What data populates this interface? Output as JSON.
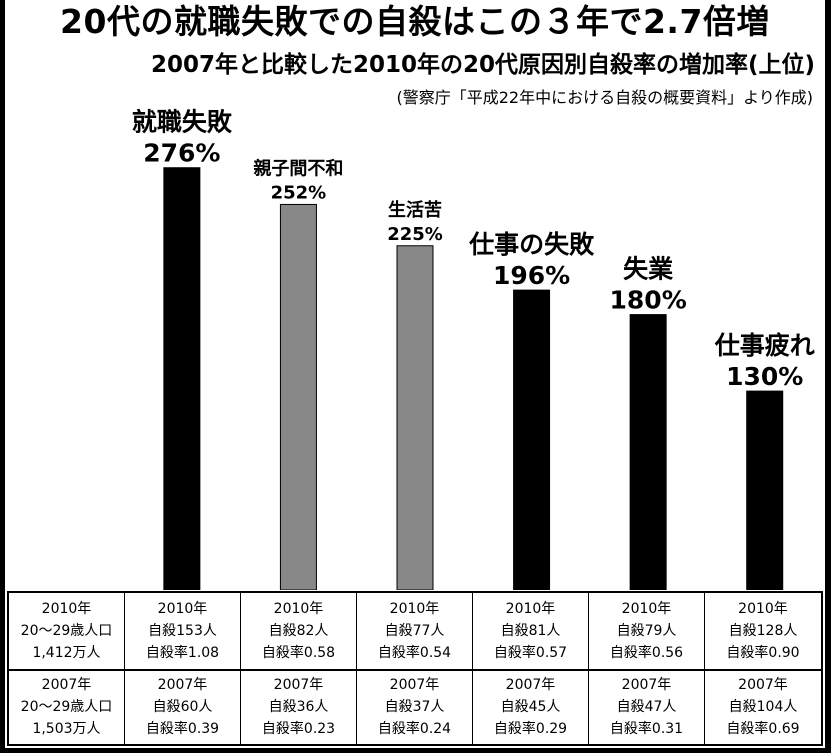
{
  "title": "20代の就職失敗での自殺はこの３年で2.7倍増",
  "subtitle": "2007年と比較した2010年の20代原因別自殺率の増加率(上位)",
  "source": "(警察庁「平成22年中における自殺の概要資料」より作成)",
  "chart_data": {
    "type": "bar",
    "categories": [
      "就職失敗",
      "親子間不和",
      "生活苦",
      "仕事の失敗",
      "失業",
      "仕事疲れ"
    ],
    "values": [
      276,
      252,
      225,
      196,
      180,
      130
    ],
    "value_labels": [
      "276%",
      "252%",
      "225%",
      "196%",
      "180%",
      "130%"
    ],
    "colors": [
      "#000000",
      "#888888",
      "#888888",
      "#000000",
      "#000000",
      "#000000"
    ],
    "ylim": [
      0,
      300
    ],
    "grid": false
  },
  "table": {
    "rows": [
      [
        "2010年\n20～29歳人口\n1,412万人",
        "2010年\n自殺153人\n自殺率1.08",
        "2010年\n自殺82人\n自殺率0.58",
        "2010年\n自殺77人\n自殺率0.54",
        "2010年\n自殺81人\n自殺率0.57",
        "2010年\n自殺79人\n自殺率0.56",
        "2010年\n自殺128人\n自殺率0.90"
      ],
      [
        "2007年\n20～29歳人口\n1,503万人",
        "2007年\n自殺60人\n自殺率0.39",
        "2007年\n自殺36人\n自殺率0.23",
        "2007年\n自殺37人\n自殺率0.24",
        "2007年\n自殺45人\n自殺率0.29",
        "2007年\n自殺47人\n自殺率0.31",
        "2007年\n自殺104人\n自殺率0.69"
      ]
    ]
  }
}
